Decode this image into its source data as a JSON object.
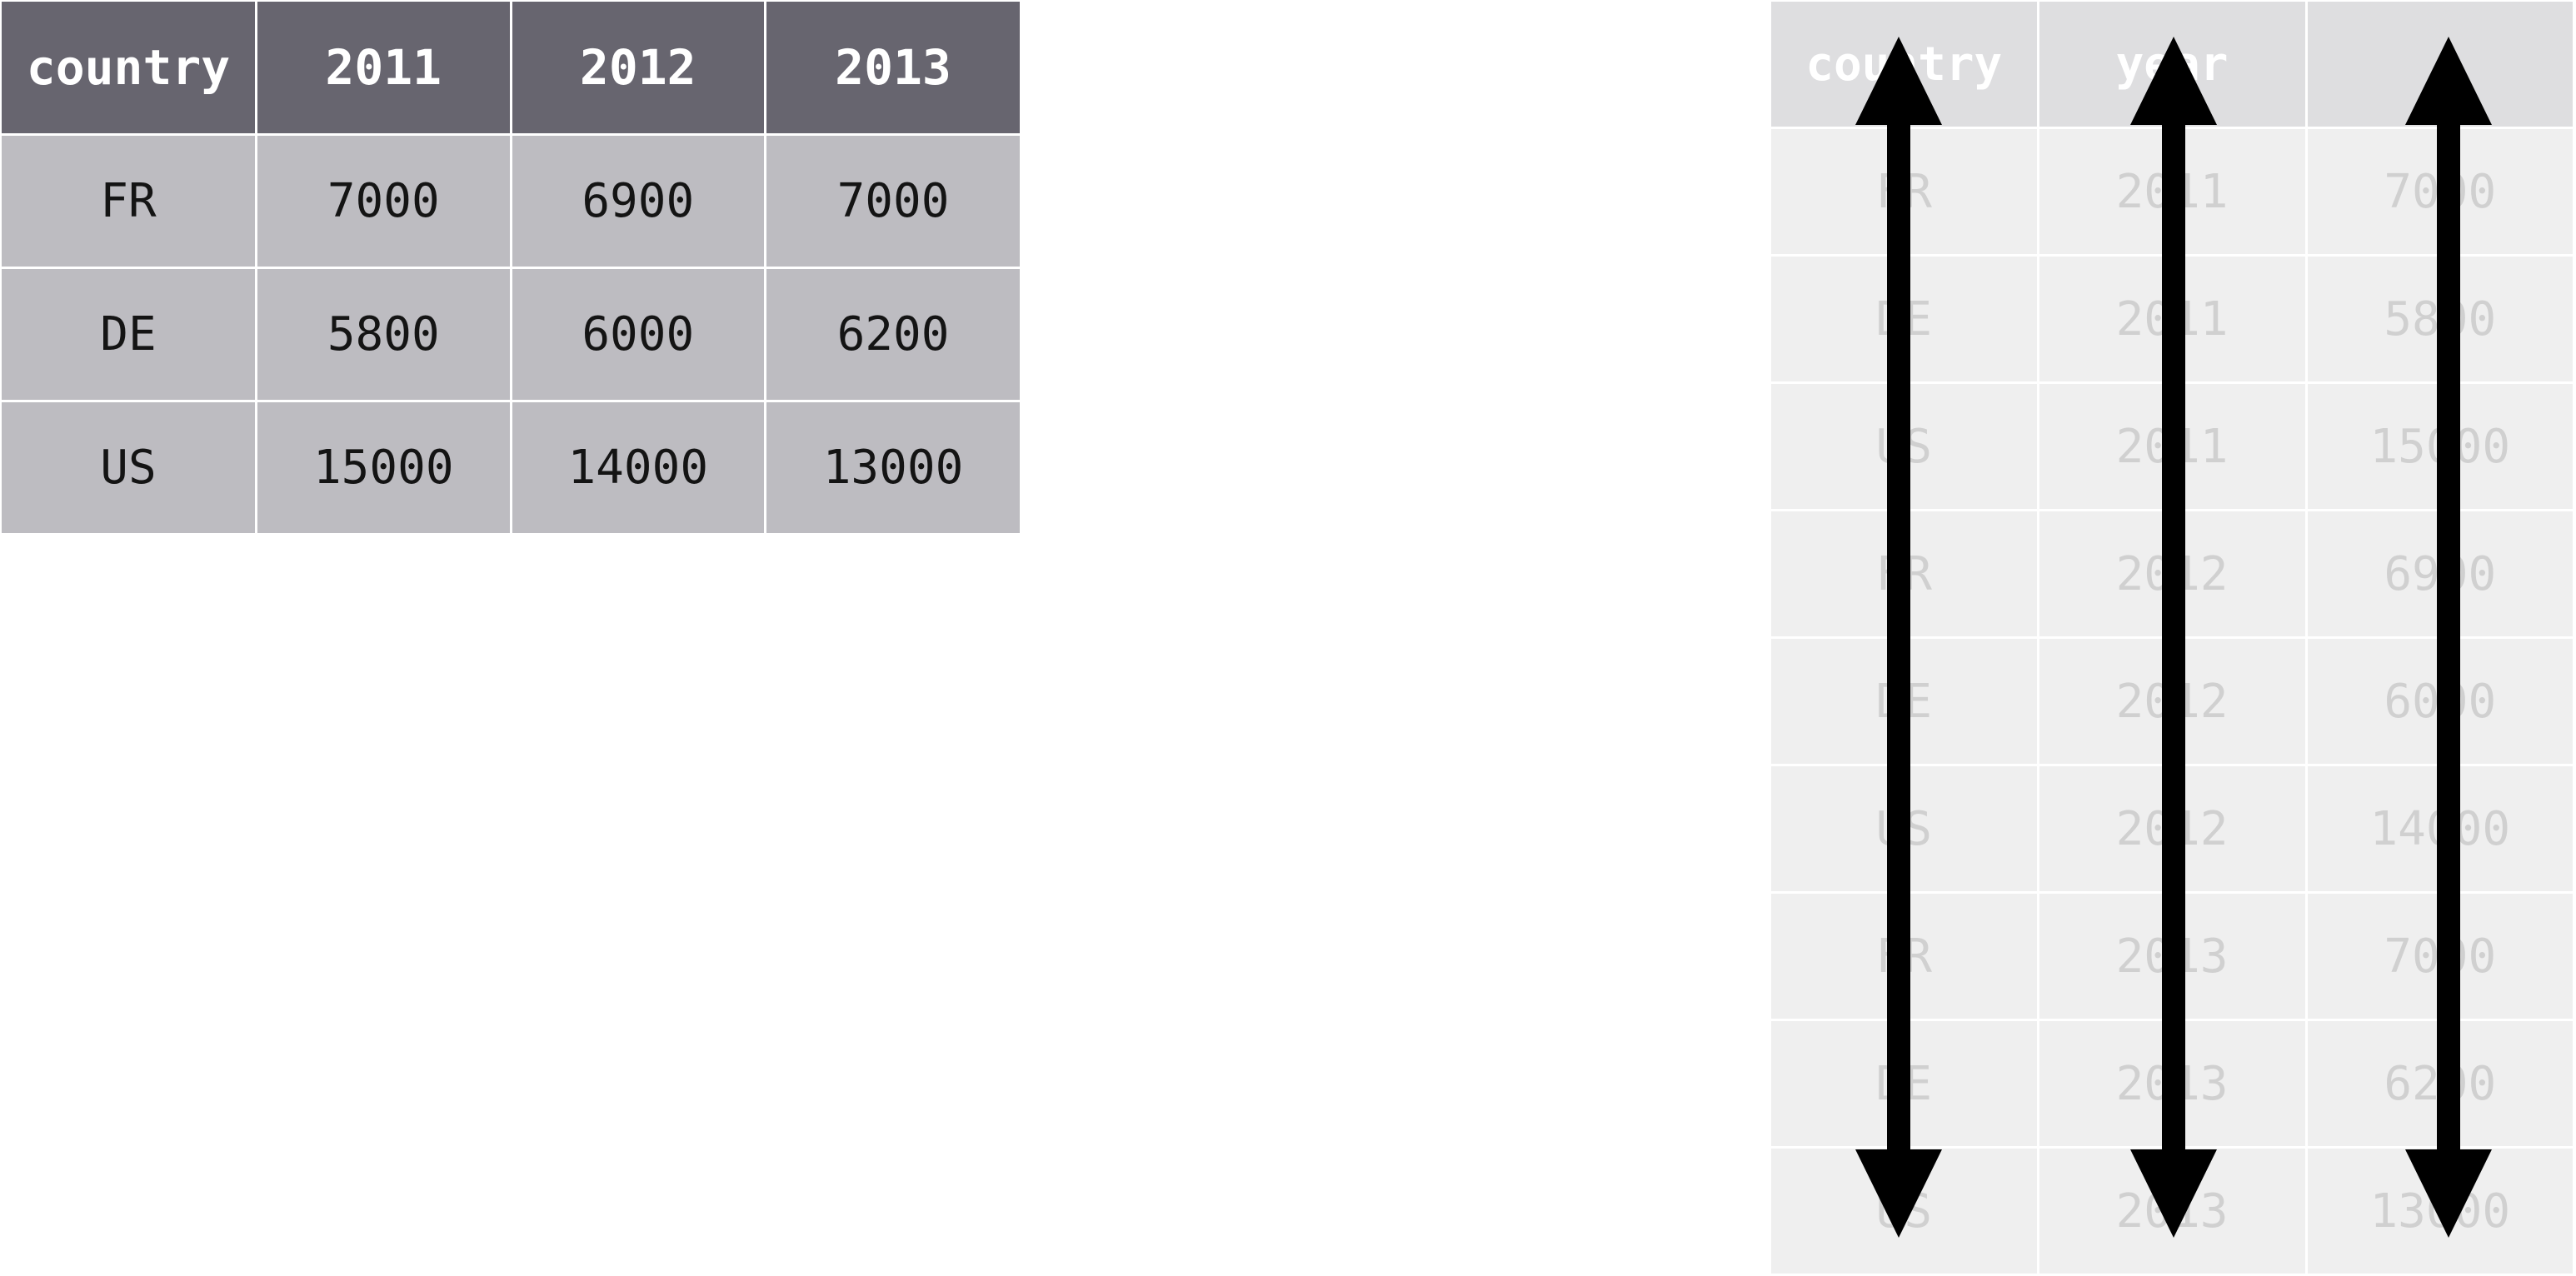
{
  "wide_table": {
    "columns": [
      "country",
      "2011",
      "2012",
      "2013"
    ],
    "rows": [
      [
        "FR",
        "7000",
        "6900",
        "7000"
      ],
      [
        "DE",
        "5800",
        "6000",
        "6200"
      ],
      [
        "US",
        "15000",
        "14000",
        "13000"
      ]
    ]
  },
  "long_table": {
    "columns": [
      "country",
      "year",
      ""
    ],
    "rows": [
      [
        "FR",
        "2011",
        "7000"
      ],
      [
        "DE",
        "2011",
        "5800"
      ],
      [
        "US",
        "2011",
        "15000"
      ],
      [
        "FR",
        "2012",
        "6900"
      ],
      [
        "DE",
        "2012",
        "6000"
      ],
      [
        "US",
        "2012",
        "14000"
      ],
      [
        "FR",
        "2013",
        "7000"
      ],
      [
        "DE",
        "2013",
        "6200"
      ],
      [
        "US",
        "2013",
        "13000"
      ]
    ]
  },
  "arrows": {
    "style": "double-headed vertical",
    "color": "#000000",
    "count": 3
  },
  "colors": {
    "wide_header_bg": "#67656f",
    "wide_cell_bg": "#bdbcc1",
    "long_header_bg": "#dedee0",
    "long_cell_bg": "#efefef",
    "long_text": "#d0d0d0"
  }
}
